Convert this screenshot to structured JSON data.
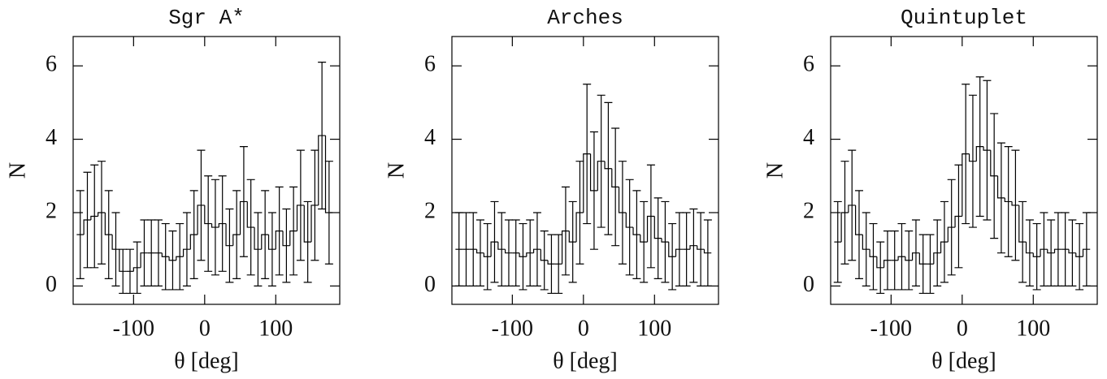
{
  "chart_data": [
    {
      "type": "histogram",
      "title": "Sgr A*",
      "xlabel": "θ [deg]",
      "ylabel": "N",
      "bins": [
        -180,
        -170,
        -160,
        -150,
        -140,
        -130,
        -120,
        -110,
        -100,
        -90,
        -80,
        -70,
        -60,
        -50,
        -40,
        -30,
        -20,
        -10,
        0,
        10,
        20,
        30,
        40,
        50,
        60,
        70,
        80,
        90,
        100,
        110,
        120,
        130,
        140,
        150,
        160,
        170,
        180
      ],
      "counts": [
        1.4,
        1.8,
        1.9,
        2.0,
        1.4,
        1.0,
        0.4,
        0.4,
        0.5,
        0.9,
        0.9,
        0.9,
        0.8,
        0.7,
        0.8,
        1.0,
        1.4,
        2.2,
        1.7,
        1.6,
        1.7,
        1.1,
        1.4,
        2.3,
        1.6,
        1.0,
        1.4,
        1.0,
        1.5,
        1.1,
        1.5,
        2.2,
        1.2,
        2.2,
        4.1,
        2.0
      ],
      "errors": [
        1.2,
        1.3,
        1.4,
        1.4,
        1.2,
        1.0,
        0.6,
        0.6,
        0.7,
        0.9,
        0.9,
        0.9,
        0.9,
        0.8,
        0.9,
        1.0,
        1.2,
        1.5,
        1.3,
        1.3,
        1.3,
        1.0,
        1.2,
        1.5,
        1.3,
        1.0,
        1.2,
        1.0,
        1.2,
        1.0,
        1.2,
        1.5,
        1.1,
        1.5,
        2.0,
        1.4
      ],
      "xlim": [
        -185,
        190
      ],
      "ylim": [
        -0.5,
        6.8
      ],
      "xticks": [
        -100,
        0,
        100
      ],
      "yticks": [
        0,
        2,
        4,
        6
      ],
      "color": "#000000"
    },
    {
      "type": "histogram",
      "title": "Arches",
      "xlabel": "θ [deg]",
      "ylabel": "N",
      "bins": [
        -180,
        -170,
        -160,
        -150,
        -140,
        -130,
        -120,
        -110,
        -100,
        -90,
        -80,
        -70,
        -60,
        -50,
        -40,
        -30,
        -20,
        -10,
        0,
        10,
        20,
        30,
        40,
        50,
        60,
        70,
        80,
        90,
        100,
        110,
        120,
        130,
        140,
        150,
        160,
        170,
        180
      ],
      "counts": [
        1.0,
        1.0,
        1.0,
        0.9,
        0.8,
        1.2,
        1.0,
        0.9,
        0.9,
        0.8,
        0.9,
        1.0,
        0.7,
        0.6,
        0.6,
        1.5,
        1.2,
        2.0,
        3.6,
        2.6,
        3.4,
        3.2,
        2.7,
        2.0,
        1.6,
        1.4,
        1.2,
        1.9,
        1.3,
        1.2,
        0.8,
        1.0,
        1.0,
        1.1,
        1.0,
        0.9
      ],
      "errors": [
        1.0,
        1.0,
        1.0,
        0.9,
        0.9,
        1.1,
        1.0,
        0.9,
        0.9,
        0.9,
        0.9,
        1.0,
        0.8,
        0.8,
        0.8,
        1.2,
        1.1,
        1.4,
        1.9,
        1.6,
        1.8,
        1.8,
        1.6,
        1.4,
        1.3,
        1.2,
        1.1,
        1.4,
        1.1,
        1.1,
        0.9,
        1.0,
        1.0,
        1.0,
        1.0,
        0.9
      ],
      "xlim": [
        -185,
        190
      ],
      "ylim": [
        -0.5,
        6.8
      ],
      "xticks": [
        -100,
        0,
        100
      ],
      "yticks": [
        0,
        2,
        4,
        6
      ],
      "color": "#000000"
    },
    {
      "type": "histogram",
      "title": "Quintuplet",
      "xlabel": "θ [deg]",
      "ylabel": "N",
      "bins": [
        -180,
        -170,
        -160,
        -150,
        -140,
        -130,
        -120,
        -110,
        -100,
        -90,
        -80,
        -70,
        -60,
        -50,
        -40,
        -30,
        -20,
        -10,
        0,
        10,
        20,
        30,
        40,
        50,
        60,
        70,
        80,
        90,
        100,
        110,
        120,
        130,
        140,
        150,
        160,
        170,
        180
      ],
      "counts": [
        1.2,
        2.0,
        2.2,
        1.4,
        1.0,
        0.8,
        0.5,
        0.7,
        0.7,
        0.8,
        0.7,
        0.9,
        0.6,
        0.6,
        0.9,
        1.2,
        1.6,
        1.9,
        3.6,
        3.4,
        3.8,
        3.7,
        3.0,
        2.4,
        2.3,
        2.2,
        1.2,
        0.9,
        0.8,
        1.0,
        0.9,
        1.0,
        1.0,
        0.9,
        0.8,
        1.0
      ],
      "errors": [
        1.1,
        1.4,
        1.5,
        1.2,
        1.0,
        0.9,
        0.7,
        0.8,
        0.8,
        0.9,
        0.8,
        0.9,
        0.8,
        0.8,
        0.9,
        1.1,
        1.3,
        1.4,
        1.9,
        1.8,
        1.9,
        1.9,
        1.7,
        1.5,
        1.5,
        1.5,
        1.1,
        0.9,
        0.9,
        1.0,
        0.9,
        1.0,
        1.0,
        0.9,
        0.9,
        1.0
      ],
      "xlim": [
        -185,
        190
      ],
      "ylim": [
        -0.5,
        6.8
      ],
      "xticks": [
        -100,
        0,
        100
      ],
      "yticks": [
        0,
        2,
        4,
        6
      ],
      "color": "#000000"
    }
  ]
}
